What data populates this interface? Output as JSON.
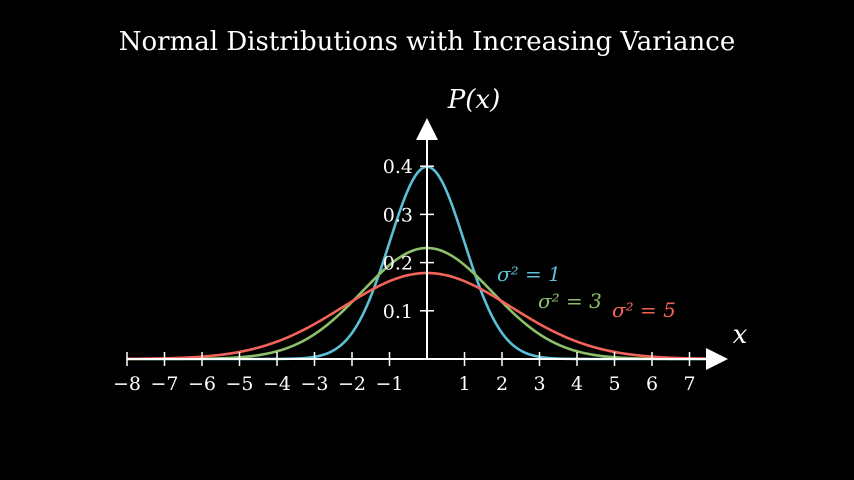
{
  "chart_data": {
    "type": "line",
    "title": "Normal Distributions with Increasing Variance",
    "xlabel": "x",
    "ylabel": "P(x)",
    "xlim": [
      -8,
      7.5
    ],
    "ylim": [
      0,
      0.45
    ],
    "x_ticks": [
      "−8",
      "−7",
      "−6",
      "−5",
      "−4",
      "−3",
      "−2",
      "−1",
      "1",
      "2",
      "3",
      "4",
      "5",
      "6",
      "7"
    ],
    "y_ticks": [
      "0.1",
      "0.2",
      "0.3",
      "0.4"
    ],
    "grid": false,
    "background": "#000000",
    "series": [
      {
        "label": "σ² = 1",
        "mean": 0,
        "variance": 1,
        "color": "#5bc0d6"
      },
      {
        "label": "σ² = 3",
        "mean": 0,
        "variance": 3,
        "color": "#8cc06a"
      },
      {
        "label": "σ² = 5",
        "mean": 0,
        "variance": 5,
        "color": "#f2645a"
      }
    ]
  }
}
